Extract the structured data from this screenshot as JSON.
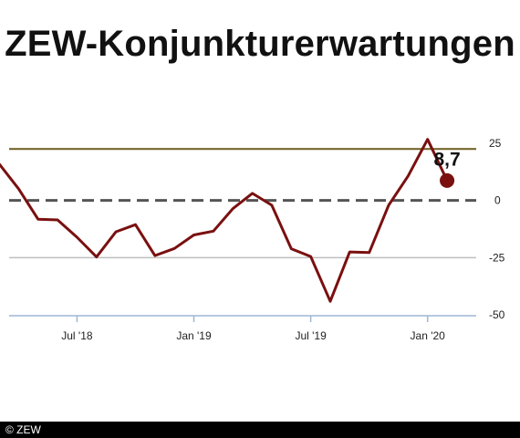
{
  "title": "ZEW-Konjunkturerwartungen",
  "footer": {
    "copyright": "© ZEW"
  },
  "colors": {
    "series": "#7a1010",
    "reference_line": "#6b5d1d",
    "zero_line": "#555555",
    "grid": "#bfbfbf",
    "x_axis": "#9fb6d6"
  },
  "chart_data": {
    "type": "line",
    "title": "ZEW-Konjunkturerwartungen",
    "xlabel": "",
    "ylabel": "",
    "ylim": [
      -50,
      25
    ],
    "y_ticks": [
      {
        "value": 25,
        "label": "25"
      },
      {
        "value": 0,
        "label": "0"
      },
      {
        "value": -25,
        "label": "-25"
      },
      {
        "value": -50,
        "label": "-50"
      }
    ],
    "x_ticks": [
      {
        "index": 4,
        "label": "Jul '18"
      },
      {
        "index": 10,
        "label": "Jan '19"
      },
      {
        "index": 16,
        "label": "Jul '19"
      },
      {
        "index": 22,
        "label": "Jan '20"
      }
    ],
    "x": [
      "2018-03",
      "2018-04",
      "2018-05",
      "2018-06",
      "2018-07",
      "2018-08",
      "2018-09",
      "2018-10",
      "2018-11",
      "2018-12",
      "2019-01",
      "2019-02",
      "2019-03",
      "2019-04",
      "2019-05",
      "2019-06",
      "2019-07",
      "2019-08",
      "2019-09",
      "2019-10",
      "2019-11",
      "2019-12",
      "2020-01",
      "2020-02",
      "2020-03"
    ],
    "series": [
      {
        "values": [
          16,
          5.1,
          -8.2,
          -8.5,
          -16.1,
          -24.7,
          -13.7,
          -10.6,
          -24.1,
          -21.0,
          -15.1,
          -13.4,
          -3.6,
          3.1,
          -2.1,
          -21.1,
          -24.5,
          -44.1,
          -22.5,
          -22.8,
          -2.1,
          10.7,
          26.7,
          8.7,
          null
        ]
      }
    ],
    "reference_line": {
      "value": 22.5
    },
    "zero_line": {
      "value": 0,
      "style": "dashed"
    },
    "grid": true,
    "legend": "none",
    "annotations": [
      {
        "index": 23,
        "value": 8.7,
        "label": "8,7"
      }
    ]
  }
}
